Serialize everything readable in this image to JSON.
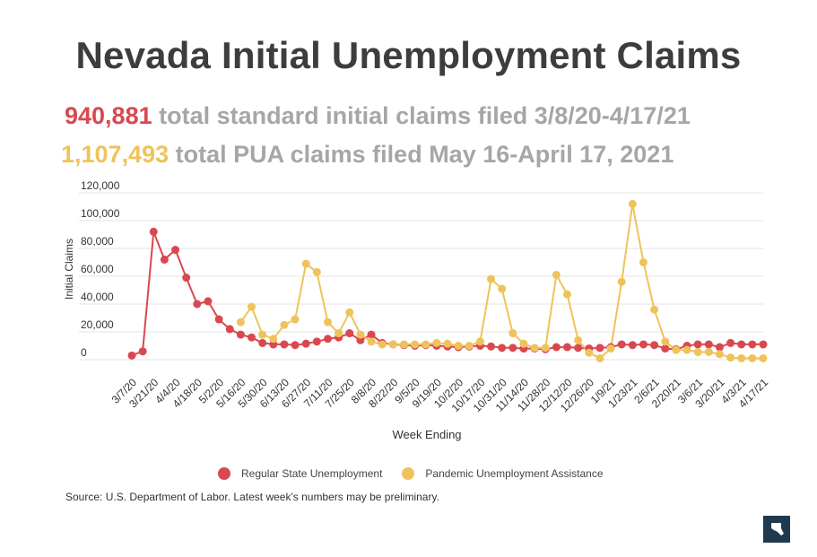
{
  "header": {
    "title": "Nevada Initial Unemployment Claims",
    "sub1_value": "940,881",
    "sub1_text": " total standard initial claims filed 3/8/20-4/17/21",
    "sub2_value": "1,107,493",
    "sub2_text": " total PUA claims filed May 16-April 17, 2021"
  },
  "colors": {
    "regular": "#d9484f",
    "pua": "#efc35b",
    "logo": "#1f3a4f"
  },
  "legend": {
    "regular": "Regular State Unemployment",
    "pua": "Pandemic Unemployment Assistance"
  },
  "source": "Source: U.S. Department of Labor. Latest week's numbers may be preliminary.",
  "chart_data": {
    "type": "line",
    "xlabel": "Week Ending",
    "ylabel": "Initial Claims",
    "ylim": [
      0,
      120000
    ],
    "yticks": [
      0,
      20000,
      40000,
      60000,
      80000,
      100000,
      120000
    ],
    "ytick_labels": [
      "0",
      "20,000",
      "40,000",
      "60,000",
      "80,000",
      "100,000",
      "120,000"
    ],
    "grid": true,
    "legend_position": "bottom",
    "categories": [
      "3/7/20",
      "3/14/20",
      "3/21/20",
      "3/28/20",
      "4/4/20",
      "4/11/20",
      "4/18/20",
      "4/25/20",
      "5/2/20",
      "5/9/20",
      "5/16/20",
      "5/23/20",
      "5/30/20",
      "6/6/20",
      "6/13/20",
      "6/20/20",
      "6/27/20",
      "7/4/20",
      "7/11/20",
      "7/18/20",
      "7/25/20",
      "8/1/20",
      "8/8/20",
      "8/15/20",
      "8/22/20",
      "8/29/20",
      "9/5/20",
      "9/12/20",
      "9/19/20",
      "9/26/20",
      "10/2/20",
      "10/10/20",
      "10/17/20",
      "10/24/20",
      "10/31/20",
      "11/7/20",
      "11/14/20",
      "11/21/20",
      "11/28/20",
      "12/5/20",
      "12/12/20",
      "12/19/20",
      "12/26/20",
      "1/2/21",
      "1/9/21",
      "1/16/21",
      "1/23/21",
      "1/30/21",
      "2/6/21",
      "2/13/21",
      "2/20/21",
      "2/27/21",
      "3/6/21",
      "3/13/21",
      "3/20/21",
      "3/27/21",
      "4/3/21",
      "4/10/21",
      "4/17/21"
    ],
    "tick_labels": [
      "3/7/20",
      "3/21/20",
      "4/4/20",
      "4/18/20",
      "5/2/20",
      "5/16/20",
      "5/30/20",
      "6/13/20",
      "6/27/20",
      "7/11/20",
      "7/25/20",
      "8/8/20",
      "8/22/20",
      "9/5/20",
      "9/19/20",
      "10/2/20",
      "10/17/20",
      "10/31/20",
      "11/14/20",
      "11/28/20",
      "12/12/20",
      "12/26/20",
      "1/9/21",
      "1/23/21",
      "2/6/21",
      "2/20/21",
      "3/6/21",
      "3/20/21",
      "4/3/21",
      "4/17/21"
    ],
    "series": [
      {
        "name": "Regular State Unemployment",
        "color": "#d9484f",
        "values": [
          3000,
          6000,
          92000,
          72000,
          79000,
          59000,
          40000,
          42000,
          29000,
          22000,
          18000,
          16000,
          12000,
          11000,
          11000,
          10500,
          11500,
          13000,
          15000,
          16000,
          19000,
          14000,
          18000,
          12000,
          11000,
          10500,
          10000,
          10500,
          10000,
          9500,
          9000,
          9500,
          10000,
          9500,
          8500,
          8500,
          8000,
          8000,
          7500,
          9000,
          9000,
          8500,
          8000,
          8500,
          9000,
          11000,
          10500,
          11000,
          10500,
          8000,
          7500,
          10000,
          11000,
          11000,
          9000,
          12000,
          11000,
          11000,
          11000
        ]
      },
      {
        "name": "Pandemic Unemployment Assistance",
        "color": "#efc35b",
        "values": [
          null,
          null,
          null,
          null,
          null,
          null,
          null,
          null,
          null,
          null,
          27000,
          38000,
          18000,
          15000,
          25000,
          29000,
          69000,
          63000,
          27000,
          19000,
          34000,
          18000,
          13000,
          11000,
          11000,
          11000,
          11000,
          11000,
          12000,
          11500,
          10000,
          10000,
          13000,
          58000,
          51000,
          19000,
          11500,
          8500,
          8500,
          61000,
          47000,
          14000,
          5000,
          1000,
          8000,
          56000,
          112000,
          70000,
          36000,
          13000,
          7000,
          7000,
          5500,
          5500,
          4000,
          1500,
          1000,
          1000,
          1000
        ]
      }
    ]
  }
}
